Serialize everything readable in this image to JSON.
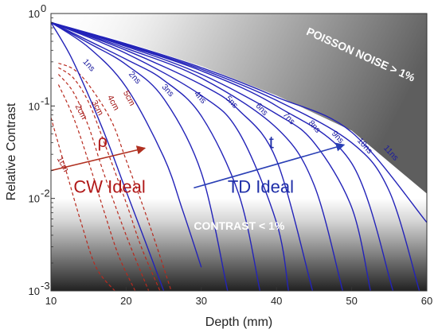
{
  "chart_data": {
    "type": "line",
    "xlabel": "Depth (mm)",
    "ylabel": "Relative Contrast",
    "xlim": [
      10,
      60
    ],
    "ylim": [
      0.001,
      1
    ],
    "yscale": "log",
    "x_ticks": [
      "10",
      "20",
      "30",
      "40",
      "50",
      "60"
    ],
    "y_ticks": [
      {
        "value": 0.001,
        "base": "10",
        "exp": "-3"
      },
      {
        "value": 0.01,
        "base": "10",
        "exp": "-2"
      },
      {
        "value": 0.1,
        "base": "10",
        "exp": "-1"
      },
      {
        "value": 1,
        "base": "10",
        "exp": "0"
      }
    ],
    "grid": false,
    "colors": {
      "td": "#2323b8",
      "cw": "#b82a1e",
      "cw_arrow": "#b03020",
      "td_arrow": "#2a3fb5"
    },
    "start_point": {
      "x": 10,
      "y": 0.8
    },
    "td_series": [
      {
        "name": "1ns",
        "x": [
          10,
          12.5,
          15,
          17.5,
          20,
          22.5,
          25
        ],
        "y": [
          0.8,
          0.36,
          0.13,
          0.042,
          0.012,
          0.0035,
          0.001
        ],
        "label_at": [
          14.2,
          0.3
        ]
      },
      {
        "name": "2ns",
        "x": [
          10,
          15,
          20,
          25,
          27.5,
          30
        ],
        "y": [
          0.8,
          0.43,
          0.16,
          0.028,
          0.0075,
          0.0018
        ],
        "label_at": [
          20.3,
          0.22
        ]
      },
      {
        "name": "3ns",
        "x": [
          10,
          15,
          20,
          25,
          30,
          33.5
        ],
        "y": [
          0.8,
          0.48,
          0.28,
          0.12,
          0.019,
          0.001
        ],
        "label_at": [
          24.7,
          0.16
        ]
      },
      {
        "name": "4ns",
        "x": [
          10,
          20,
          25,
          30,
          35,
          37.8
        ],
        "y": [
          0.8,
          0.32,
          0.19,
          0.078,
          0.011,
          0.001
        ],
        "label_at": [
          29.0,
          0.135
        ]
      },
      {
        "name": "5ns",
        "x": [
          10,
          20,
          30,
          35,
          40,
          41.6
        ],
        "y": [
          0.8,
          0.37,
          0.13,
          0.052,
          0.0055,
          0.001
        ],
        "label_at": [
          33.2,
          0.12
        ]
      },
      {
        "name": "6ns",
        "x": [
          10,
          20,
          30,
          35,
          40,
          44.8
        ],
        "y": [
          0.8,
          0.4,
          0.17,
          0.09,
          0.026,
          0.001
        ],
        "label_at": [
          37.2,
          0.1
        ]
      },
      {
        "name": "7ns",
        "x": [
          10,
          20,
          30,
          40,
          45,
          48.8
        ],
        "y": [
          0.8,
          0.42,
          0.2,
          0.058,
          0.014,
          0.001
        ],
        "label_at": [
          40.8,
          0.08
        ]
      },
      {
        "name": "8ns",
        "x": [
          10,
          20,
          30,
          40,
          45,
          50,
          52.5
        ],
        "y": [
          0.8,
          0.44,
          0.22,
          0.082,
          0.04,
          0.008,
          0.001
        ],
        "label_at": [
          44.2,
          0.065
        ]
      },
      {
        "name": "9ns",
        "x": [
          10,
          20,
          30,
          40,
          50,
          55.5
        ],
        "y": [
          0.8,
          0.45,
          0.24,
          0.1,
          0.024,
          0.001
        ],
        "label_at": [
          47.3,
          0.05
        ]
      },
      {
        "name": "10ns",
        "x": [
          10,
          20,
          30,
          40,
          50,
          55,
          59
        ],
        "y": [
          0.8,
          0.46,
          0.25,
          0.115,
          0.04,
          0.012,
          0.001
        ],
        "label_at": [
          50.7,
          0.042
        ]
      },
      {
        "name": "11ns",
        "x": [
          10,
          20,
          30,
          40,
          50,
          60
        ],
        "y": [
          0.8,
          0.47,
          0.26,
          0.125,
          0.052,
          0.0055
        ],
        "label_at": [
          54.2,
          0.035
        ]
      }
    ],
    "cw_series": [
      {
        "name": "1cm",
        "x": [
          10,
          12,
          14,
          16,
          18.5
        ],
        "y": [
          0.075,
          0.02,
          0.0055,
          0.0018,
          0.001
        ],
        "label_at": [
          10.8,
          0.027
        ]
      },
      {
        "name": "2cm",
        "x": [
          11,
          13,
          15,
          17,
          19,
          21.2
        ],
        "y": [
          0.17,
          0.075,
          0.025,
          0.0075,
          0.0024,
          0.001
        ],
        "label_at": [
          13.2,
          0.1
        ]
      },
      {
        "name": "3cm",
        "x": [
          11,
          13,
          15,
          17,
          20,
          23
        ],
        "y": [
          0.22,
          0.14,
          0.06,
          0.019,
          0.004,
          0.001
        ],
        "label_at": [
          15.4,
          0.11
        ]
      },
      {
        "name": "4cm",
        "x": [
          11,
          13,
          15,
          17,
          20,
          22,
          24.5
        ],
        "y": [
          0.26,
          0.2,
          0.11,
          0.042,
          0.009,
          0.003,
          0.001
        ],
        "label_at": [
          17.5,
          0.125
        ]
      },
      {
        "name": "5cm",
        "x": [
          11,
          13,
          15,
          18,
          20,
          23,
          26
        ],
        "y": [
          0.29,
          0.25,
          0.17,
          0.07,
          0.026,
          0.0055,
          0.001
        ],
        "label_at": [
          19.6,
          0.14
        ]
      }
    ],
    "cw_arrow": {
      "from": [
        10,
        0.02
      ],
      "to": [
        22.5,
        0.035
      ]
    },
    "td_arrow": {
      "from": [
        29,
        0.013
      ],
      "to": [
        49,
        0.038
      ]
    },
    "annotations": {
      "rho": {
        "text": "ρ",
        "at": [
          16.2,
          0.036
        ]
      },
      "t": {
        "text": "t",
        "at": [
          39,
          0.035
        ]
      },
      "cw_ideal": {
        "text": "CW Ideal",
        "at": [
          13,
          0.0115
        ]
      },
      "td_ideal": {
        "text": "TD Ideal",
        "at": [
          33.5,
          0.0115
        ]
      },
      "poisson": {
        "text": "POISSON NOISE > 1%",
        "at": [
          51,
          0.33
        ]
      },
      "contrast": {
        "text": "CONTRAST < 1%",
        "at": [
          29,
          0.0046
        ]
      }
    }
  }
}
